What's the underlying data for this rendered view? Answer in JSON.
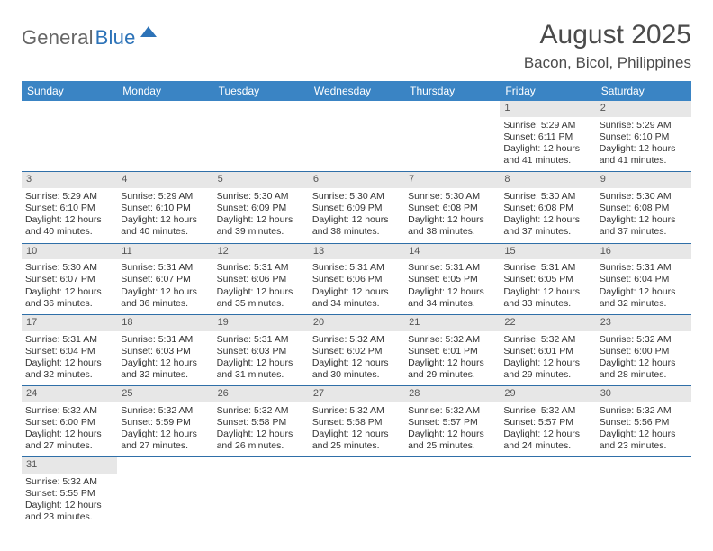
{
  "brand": {
    "part1": "General",
    "part2": "Blue",
    "color1": "#666666",
    "color2": "#2d73b8",
    "icon_color": "#2d73b8"
  },
  "title": "August 2025",
  "location": "Bacon, Bicol, Philippines",
  "header_bg": "#3a84c4",
  "header_fg": "#ffffff",
  "daynum_bg": "#e7e7e7",
  "rule_color": "#2f6fa8",
  "weekdays": [
    "Sunday",
    "Monday",
    "Tuesday",
    "Wednesday",
    "Thursday",
    "Friday",
    "Saturday"
  ],
  "weeks": [
    [
      null,
      null,
      null,
      null,
      null,
      {
        "n": "1",
        "sr": "Sunrise: 5:29 AM",
        "ss": "Sunset: 6:11 PM",
        "dl": "Daylight: 12 hours and 41 minutes."
      },
      {
        "n": "2",
        "sr": "Sunrise: 5:29 AM",
        "ss": "Sunset: 6:10 PM",
        "dl": "Daylight: 12 hours and 41 minutes."
      }
    ],
    [
      {
        "n": "3",
        "sr": "Sunrise: 5:29 AM",
        "ss": "Sunset: 6:10 PM",
        "dl": "Daylight: 12 hours and 40 minutes."
      },
      {
        "n": "4",
        "sr": "Sunrise: 5:29 AM",
        "ss": "Sunset: 6:10 PM",
        "dl": "Daylight: 12 hours and 40 minutes."
      },
      {
        "n": "5",
        "sr": "Sunrise: 5:30 AM",
        "ss": "Sunset: 6:09 PM",
        "dl": "Daylight: 12 hours and 39 minutes."
      },
      {
        "n": "6",
        "sr": "Sunrise: 5:30 AM",
        "ss": "Sunset: 6:09 PM",
        "dl": "Daylight: 12 hours and 38 minutes."
      },
      {
        "n": "7",
        "sr": "Sunrise: 5:30 AM",
        "ss": "Sunset: 6:08 PM",
        "dl": "Daylight: 12 hours and 38 minutes."
      },
      {
        "n": "8",
        "sr": "Sunrise: 5:30 AM",
        "ss": "Sunset: 6:08 PM",
        "dl": "Daylight: 12 hours and 37 minutes."
      },
      {
        "n": "9",
        "sr": "Sunrise: 5:30 AM",
        "ss": "Sunset: 6:08 PM",
        "dl": "Daylight: 12 hours and 37 minutes."
      }
    ],
    [
      {
        "n": "10",
        "sr": "Sunrise: 5:30 AM",
        "ss": "Sunset: 6:07 PM",
        "dl": "Daylight: 12 hours and 36 minutes."
      },
      {
        "n": "11",
        "sr": "Sunrise: 5:31 AM",
        "ss": "Sunset: 6:07 PM",
        "dl": "Daylight: 12 hours and 36 minutes."
      },
      {
        "n": "12",
        "sr": "Sunrise: 5:31 AM",
        "ss": "Sunset: 6:06 PM",
        "dl": "Daylight: 12 hours and 35 minutes."
      },
      {
        "n": "13",
        "sr": "Sunrise: 5:31 AM",
        "ss": "Sunset: 6:06 PM",
        "dl": "Daylight: 12 hours and 34 minutes."
      },
      {
        "n": "14",
        "sr": "Sunrise: 5:31 AM",
        "ss": "Sunset: 6:05 PM",
        "dl": "Daylight: 12 hours and 34 minutes."
      },
      {
        "n": "15",
        "sr": "Sunrise: 5:31 AM",
        "ss": "Sunset: 6:05 PM",
        "dl": "Daylight: 12 hours and 33 minutes."
      },
      {
        "n": "16",
        "sr": "Sunrise: 5:31 AM",
        "ss": "Sunset: 6:04 PM",
        "dl": "Daylight: 12 hours and 32 minutes."
      }
    ],
    [
      {
        "n": "17",
        "sr": "Sunrise: 5:31 AM",
        "ss": "Sunset: 6:04 PM",
        "dl": "Daylight: 12 hours and 32 minutes."
      },
      {
        "n": "18",
        "sr": "Sunrise: 5:31 AM",
        "ss": "Sunset: 6:03 PM",
        "dl": "Daylight: 12 hours and 32 minutes."
      },
      {
        "n": "19",
        "sr": "Sunrise: 5:31 AM",
        "ss": "Sunset: 6:03 PM",
        "dl": "Daylight: 12 hours and 31 minutes."
      },
      {
        "n": "20",
        "sr": "Sunrise: 5:32 AM",
        "ss": "Sunset: 6:02 PM",
        "dl": "Daylight: 12 hours and 30 minutes."
      },
      {
        "n": "21",
        "sr": "Sunrise: 5:32 AM",
        "ss": "Sunset: 6:01 PM",
        "dl": "Daylight: 12 hours and 29 minutes."
      },
      {
        "n": "22",
        "sr": "Sunrise: 5:32 AM",
        "ss": "Sunset: 6:01 PM",
        "dl": "Daylight: 12 hours and 29 minutes."
      },
      {
        "n": "23",
        "sr": "Sunrise: 5:32 AM",
        "ss": "Sunset: 6:00 PM",
        "dl": "Daylight: 12 hours and 28 minutes."
      }
    ],
    [
      {
        "n": "24",
        "sr": "Sunrise: 5:32 AM",
        "ss": "Sunset: 6:00 PM",
        "dl": "Daylight: 12 hours and 27 minutes."
      },
      {
        "n": "25",
        "sr": "Sunrise: 5:32 AM",
        "ss": "Sunset: 5:59 PM",
        "dl": "Daylight: 12 hours and 27 minutes."
      },
      {
        "n": "26",
        "sr": "Sunrise: 5:32 AM",
        "ss": "Sunset: 5:58 PM",
        "dl": "Daylight: 12 hours and 26 minutes."
      },
      {
        "n": "27",
        "sr": "Sunrise: 5:32 AM",
        "ss": "Sunset: 5:58 PM",
        "dl": "Daylight: 12 hours and 25 minutes."
      },
      {
        "n": "28",
        "sr": "Sunrise: 5:32 AM",
        "ss": "Sunset: 5:57 PM",
        "dl": "Daylight: 12 hours and 25 minutes."
      },
      {
        "n": "29",
        "sr": "Sunrise: 5:32 AM",
        "ss": "Sunset: 5:57 PM",
        "dl": "Daylight: 12 hours and 24 minutes."
      },
      {
        "n": "30",
        "sr": "Sunrise: 5:32 AM",
        "ss": "Sunset: 5:56 PM",
        "dl": "Daylight: 12 hours and 23 minutes."
      }
    ],
    [
      {
        "n": "31",
        "sr": "Sunrise: 5:32 AM",
        "ss": "Sunset: 5:55 PM",
        "dl": "Daylight: 12 hours and 23 minutes."
      },
      null,
      null,
      null,
      null,
      null,
      null
    ]
  ]
}
